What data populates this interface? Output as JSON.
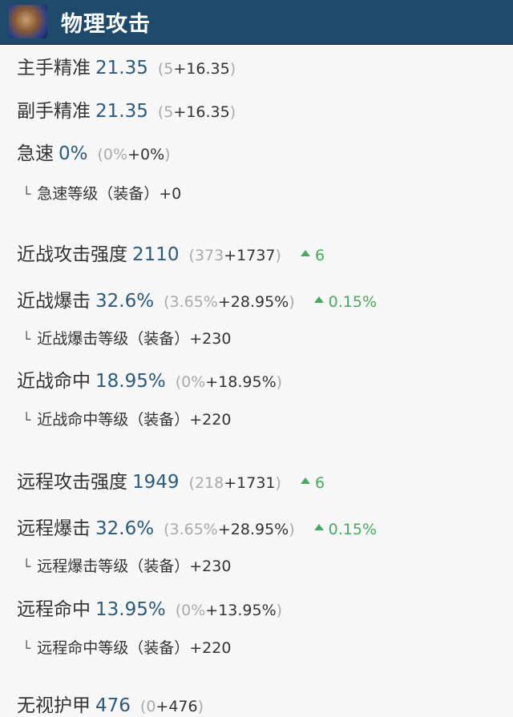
{
  "header": {
    "title": "物理攻击",
    "icon": "fist-icon"
  },
  "rows": [
    {
      "type": "main",
      "label": "主手精准",
      "value": "21.35",
      "base": "5",
      "bonus": "+16.35"
    },
    {
      "type": "main",
      "label": "副手精准",
      "value": "21.35",
      "base": "5",
      "bonus": "+16.35"
    },
    {
      "type": "main",
      "label": "急速",
      "value": "0%",
      "base": "0%",
      "bonus": "+0%"
    },
    {
      "type": "sub",
      "label": "急速等级（装备）+0"
    },
    {
      "type": "main",
      "label": "近战攻击强度",
      "value": "2110",
      "base": "373",
      "bonus": "+1737",
      "delta": "6"
    },
    {
      "type": "main",
      "label": "近战爆击",
      "value": "32.6%",
      "base": "3.65%",
      "bonus": "+28.95%",
      "delta": "0.15%"
    },
    {
      "type": "sub",
      "label": "近战爆击等级（装备）+230"
    },
    {
      "type": "main",
      "label": "近战命中",
      "value": "18.95%",
      "base": "0%",
      "bonus": "+18.95%"
    },
    {
      "type": "sub",
      "label": "近战命中等级（装备）+220"
    },
    {
      "type": "main",
      "label": "远程攻击强度",
      "value": "1949",
      "base": "218",
      "bonus": "+1731",
      "delta": "6"
    },
    {
      "type": "main",
      "label": "远程爆击",
      "value": "32.6%",
      "base": "3.65%",
      "bonus": "+28.95%",
      "delta": "0.15%"
    },
    {
      "type": "sub",
      "label": "远程爆击等级（装备）+230"
    },
    {
      "type": "main",
      "label": "远程命中",
      "value": "13.95%",
      "base": "0%",
      "bonus": "+13.95%"
    },
    {
      "type": "sub",
      "label": "远程命中等级（装备）+220"
    },
    {
      "type": "main",
      "label": "无视护甲",
      "value": "476",
      "base": "0",
      "bonus": "+476"
    }
  ],
  "colors": {
    "header": "#1f4a6c",
    "value": "#2d5a7c",
    "increase": "#4aa860"
  }
}
